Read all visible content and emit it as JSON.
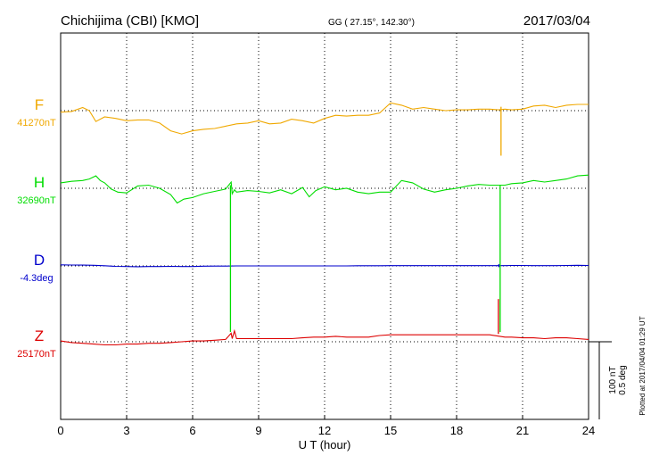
{
  "header": {
    "title": "Chichijima (CBI)  [KMO]",
    "coords": "GG ( 27.15°, 142.30°)",
    "date": "2017/03/04"
  },
  "footer": {
    "plotted": "Plotted at 2017/04/04 01:29 UT"
  },
  "scale": {
    "nt": "100 nT",
    "deg": "0.5 deg"
  },
  "colors": {
    "F": "#f0a800",
    "H": "#00dd00",
    "D": "#0000cc",
    "Z": "#dd0000",
    "grid": "#000000"
  },
  "chart_data": {
    "type": "line",
    "title": "Chichijima (CBI)  [KMO]",
    "xlabel": "U T (hour)",
    "ylabel": "",
    "xlim": [
      0,
      24
    ],
    "xticks": [
      "0",
      "3",
      "6",
      "9",
      "12",
      "15",
      "18",
      "21",
      "24"
    ],
    "grid": true,
    "series": [
      {
        "key": "F",
        "name": "F",
        "baseline_label": "41270nT",
        "unit": "nT",
        "baseline": 41270,
        "x": [
          0,
          0.5,
          1,
          1.3,
          1.6,
          2,
          2.5,
          3,
          3.5,
          4,
          4.5,
          5,
          5.5,
          6,
          6.5,
          7,
          7.5,
          8,
          8.5,
          9,
          9.5,
          10,
          10.5,
          11,
          11.5,
          12,
          12.5,
          13,
          13.5,
          14,
          14.5,
          15,
          15.5,
          16,
          16.5,
          17,
          17.5,
          18,
          18.5,
          19,
          19.5,
          19.9,
          20.2,
          20.5,
          21,
          21.5,
          22,
          22.5,
          23,
          23.5,
          24
        ],
        "values": [
          41268,
          41269,
          41274,
          41270,
          41256,
          41262,
          41260,
          41257,
          41258,
          41258,
          41254,
          41244,
          41240,
          41244,
          41246,
          41247,
          41250,
          41253,
          41254,
          41257,
          41253,
          41254,
          41259,
          41257,
          41254,
          41260,
          41264,
          41263,
          41264,
          41264,
          41267,
          41280,
          41277,
          41272,
          41274,
          41272,
          41270,
          41271,
          41271,
          41272,
          41272,
          41271,
          41272,
          41271,
          41272,
          41276,
          41277,
          41274,
          41277,
          41278,
          41278
        ]
      },
      {
        "key": "H",
        "name": "H",
        "baseline_label": "32690nT",
        "unit": "nT",
        "baseline": 32690,
        "x": [
          0,
          0.5,
          1,
          1.3,
          1.6,
          1.8,
          2,
          2.3,
          2.6,
          3,
          3.5,
          4,
          4.5,
          5,
          5.3,
          5.6,
          6,
          6.5,
          7,
          7.5,
          7.75,
          7.8,
          7.9,
          8,
          8.5,
          9,
          9.5,
          10,
          10.5,
          11,
          11.3,
          11.6,
          12,
          12.5,
          13,
          13.5,
          14,
          14.5,
          15,
          15.5,
          16,
          16.5,
          17,
          17.5,
          18,
          18.5,
          19,
          19.5,
          20.2,
          20.5,
          21,
          21.5,
          22,
          22.5,
          23,
          23.5,
          24
        ],
        "values": [
          32697,
          32699,
          32700,
          32702,
          32706,
          32700,
          32697,
          32689,
          32685,
          32684,
          32693,
          32694,
          32690,
          32682,
          32671,
          32676,
          32678,
          32683,
          32686,
          32689,
          32698,
          32683,
          32688,
          32685,
          32687,
          32686,
          32684,
          32688,
          32683,
          32691,
          32679,
          32687,
          32692,
          32688,
          32690,
          32685,
          32683,
          32685,
          32685,
          32700,
          32697,
          32689,
          32685,
          32688,
          32690,
          32693,
          32695,
          32694,
          32694,
          32696,
          32697,
          32700,
          32698,
          32700,
          32702,
          32706,
          32707
        ]
      },
      {
        "key": "D",
        "name": "D",
        "baseline_label": "-4.3deg",
        "unit": "deg",
        "baseline": -4.3,
        "x": [
          0,
          0.5,
          1,
          1.5,
          2,
          2.5,
          3,
          3.5,
          4,
          4.5,
          5,
          5.5,
          6,
          6.5,
          7,
          7.5,
          8,
          8.5,
          9,
          9.5,
          10,
          10.5,
          11,
          11.5,
          12,
          12.5,
          13,
          13.5,
          14,
          14.5,
          15,
          15.5,
          16,
          16.5,
          17,
          17.5,
          18,
          18.5,
          19,
          19.5,
          20.2,
          20.5,
          21,
          21.5,
          22,
          22.5,
          23,
          23.5,
          24
        ],
        "values": [
          -4.293,
          -4.294,
          -4.295,
          -4.296,
          -4.299,
          -4.303,
          -4.304,
          -4.305,
          -4.304,
          -4.304,
          -4.303,
          -4.304,
          -4.304,
          -4.302,
          -4.301,
          -4.301,
          -4.3,
          -4.3,
          -4.3,
          -4.3,
          -4.3,
          -4.3,
          -4.3,
          -4.3,
          -4.3,
          -4.3,
          -4.3,
          -4.299,
          -4.299,
          -4.299,
          -4.298,
          -4.298,
          -4.298,
          -4.298,
          -4.298,
          -4.298,
          -4.298,
          -4.298,
          -4.298,
          -4.298,
          -4.298,
          -4.297,
          -4.297,
          -4.298,
          -4.298,
          -4.298,
          -4.297,
          -4.296,
          -4.297
        ]
      },
      {
        "key": "Z",
        "name": "Z",
        "baseline_label": "25170nT",
        "unit": "nT",
        "baseline": 25170,
        "x": [
          0,
          0.5,
          1,
          1.5,
          2,
          2.5,
          3,
          3.5,
          4,
          4.5,
          5,
          5.5,
          6,
          6.5,
          7,
          7.5,
          7.75,
          7.8,
          7.9,
          8,
          8.5,
          9,
          9.5,
          10,
          10.5,
          11,
          11.5,
          12,
          12.5,
          13,
          13.5,
          14,
          14.5,
          15,
          15.5,
          16,
          16.5,
          17,
          17.5,
          18,
          18.5,
          19,
          19.5,
          20.2,
          20.5,
          21,
          21.5,
          22,
          22.5,
          23,
          23.5,
          24
        ],
        "values": [
          25171,
          25169,
          25168,
          25167,
          25166,
          25166,
          25167,
          25167,
          25168,
          25168,
          25169,
          25170,
          25171,
          25171,
          25172,
          25173,
          25181,
          25174,
          25184,
          25174,
          25174,
          25174,
          25174,
          25174,
          25174,
          25175,
          25176,
          25176,
          25177,
          25176,
          25176,
          25176,
          25178,
          25179,
          25179,
          25179,
          25179,
          25179,
          25179,
          25179,
          25179,
          25179,
          25179,
          25176,
          25176,
          25175,
          25175,
          25174,
          25175,
          25175,
          25174,
          25173
        ]
      }
    ],
    "spikes": [
      {
        "key": "H",
        "x": 7.72,
        "from": 32694,
        "to": 32505
      },
      {
        "key": "H",
        "x": 19.98,
        "from": 32694,
        "to": 32505
      },
      {
        "key": "Z",
        "x": 19.9,
        "from": 25180,
        "to": 25225
      },
      {
        "key": "F",
        "x": 20.02,
        "from": 41275,
        "to": 41212
      },
      {
        "key": "D",
        "x": 19.92,
        "from": -4.289,
        "to": -4.308
      }
    ]
  }
}
